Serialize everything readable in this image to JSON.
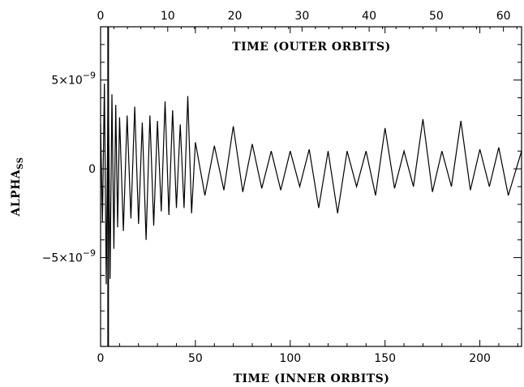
{
  "chart_data": {
    "type": "line",
    "xlabel": "TIME (INNER ORBITS)",
    "x2label": "TIME (OUTER ORBITS)",
    "ylabel": "ALPHA",
    "ylabel_sub": "SS",
    "xlim": [
      0,
      222
    ],
    "x2lim": [
      0,
      62.7
    ],
    "ylim": [
      -1e-08,
      8e-09
    ],
    "x_ticks": [
      0,
      50,
      100,
      150,
      200
    ],
    "x_tick_labels": [
      "0",
      "50",
      "100",
      "150",
      "200"
    ],
    "x2_ticks": [
      0,
      10,
      20,
      30,
      40,
      50,
      60
    ],
    "x2_tick_labels": [
      "0",
      "10",
      "20",
      "30",
      "40",
      "50",
      "60"
    ],
    "y_ticks": [
      -5e-09,
      0,
      5e-09
    ],
    "y_tick_labels": [
      {
        "mantissa": "−5×10",
        "exp": "−9"
      },
      {
        "mantissa": "0",
        "exp": ""
      },
      {
        "mantissa": "5×10",
        "exp": "−9"
      }
    ],
    "vertical_marker_x": 4,
    "grid": false,
    "series": [
      {
        "x": [
          0,
          1,
          2,
          3,
          4,
          5,
          6,
          7,
          8,
          9,
          10,
          12,
          14,
          16,
          18,
          20,
          22,
          24,
          26,
          28,
          30,
          32,
          34,
          36,
          38,
          40,
          42,
          44,
          46,
          48,
          50,
          55,
          60,
          65,
          70,
          75,
          80,
          85,
          90,
          95,
          100,
          105,
          110,
          115,
          120,
          125,
          130,
          135,
          140,
          145,
          150,
          155,
          160,
          165,
          170,
          175,
          180,
          185,
          190,
          195,
          200,
          205,
          210,
          215,
          222
        ],
        "y": [
          2.5e-09,
          -3e-09,
          4.8e-09,
          -6.5e-09,
          5.2e-09,
          -6.2e-09,
          4.2e-09,
          -4.5e-09,
          3.6e-09,
          -3.3e-09,
          2.9e-09,
          -3.5e-09,
          3e-09,
          -2.8e-09,
          3.5e-09,
          -3.1e-09,
          2.6e-09,
          -4e-09,
          3e-09,
          -3.2e-09,
          2.7e-09,
          -2.4e-09,
          3.8e-09,
          -2.6e-09,
          3.3e-09,
          -2.2e-09,
          2.5e-09,
          -2.2e-09,
          4.1e-09,
          -2.5e-09,
          1.5e-09,
          -1.5e-09,
          1.3e-09,
          -1.2e-09,
          2.4e-09,
          -1.3e-09,
          1.4e-09,
          -1.1e-09,
          1e-09,
          -1.2e-09,
          1e-09,
          -1e-09,
          1.1e-09,
          -2.2e-09,
          1e-09,
          -2.5e-09,
          1e-09,
          -1e-09,
          1e-09,
          -1.5e-09,
          2.3e-09,
          -1.1e-09,
          1e-09,
          -1e-09,
          2.8e-09,
          -1.3e-09,
          1e-09,
          -1e-09,
          2.7e-09,
          -1.2e-09,
          1.1e-09,
          -1e-09,
          1.2e-09,
          -1.5e-09,
          1e-09
        ]
      }
    ]
  }
}
